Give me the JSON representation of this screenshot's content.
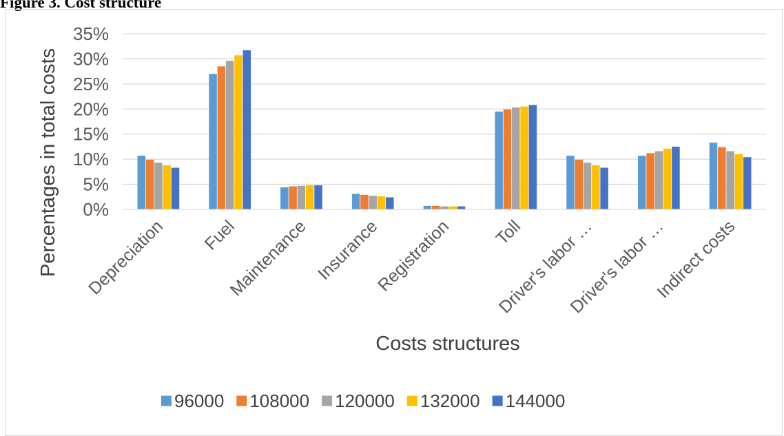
{
  "caption": "Figure 3. Cost structure",
  "chart_data": {
    "type": "bar",
    "xlabel": "Costs structures",
    "ylabel": "Percentages in total costs",
    "ylim": [
      0,
      35
    ],
    "yticks": [
      "0%",
      "5%",
      "10%",
      "15%",
      "20%",
      "25%",
      "30%",
      "35%"
    ],
    "grid": true,
    "legend": "bottom",
    "categories": [
      "Depreciation",
      "Fuel",
      "Maintenance",
      "Insurance",
      "Registration",
      "Toll",
      "Driver's labor …",
      "Driver's labor …",
      "Indirect costs"
    ],
    "series": [
      {
        "name": "96000",
        "color": "#5b9bd5",
        "values": [
          10.7,
          27.0,
          4.4,
          3.1,
          0.7,
          19.5,
          10.7,
          10.7,
          13.3
        ]
      },
      {
        "name": "108000",
        "color": "#ed7d31",
        "values": [
          9.9,
          28.5,
          4.6,
          2.9,
          0.7,
          19.9,
          9.9,
          11.2,
          12.4
        ]
      },
      {
        "name": "120000",
        "color": "#a5a5a5",
        "values": [
          9.3,
          29.6,
          4.7,
          2.7,
          0.6,
          20.3,
          9.3,
          11.6,
          11.6
        ]
      },
      {
        "name": "132000",
        "color": "#ffc000",
        "values": [
          8.8,
          30.7,
          4.8,
          2.6,
          0.6,
          20.5,
          8.8,
          12.1,
          11.0
        ]
      },
      {
        "name": "144000",
        "color": "#4472c4",
        "values": [
          8.3,
          31.7,
          4.8,
          2.4,
          0.6,
          20.8,
          8.3,
          12.5,
          10.4
        ]
      }
    ]
  }
}
